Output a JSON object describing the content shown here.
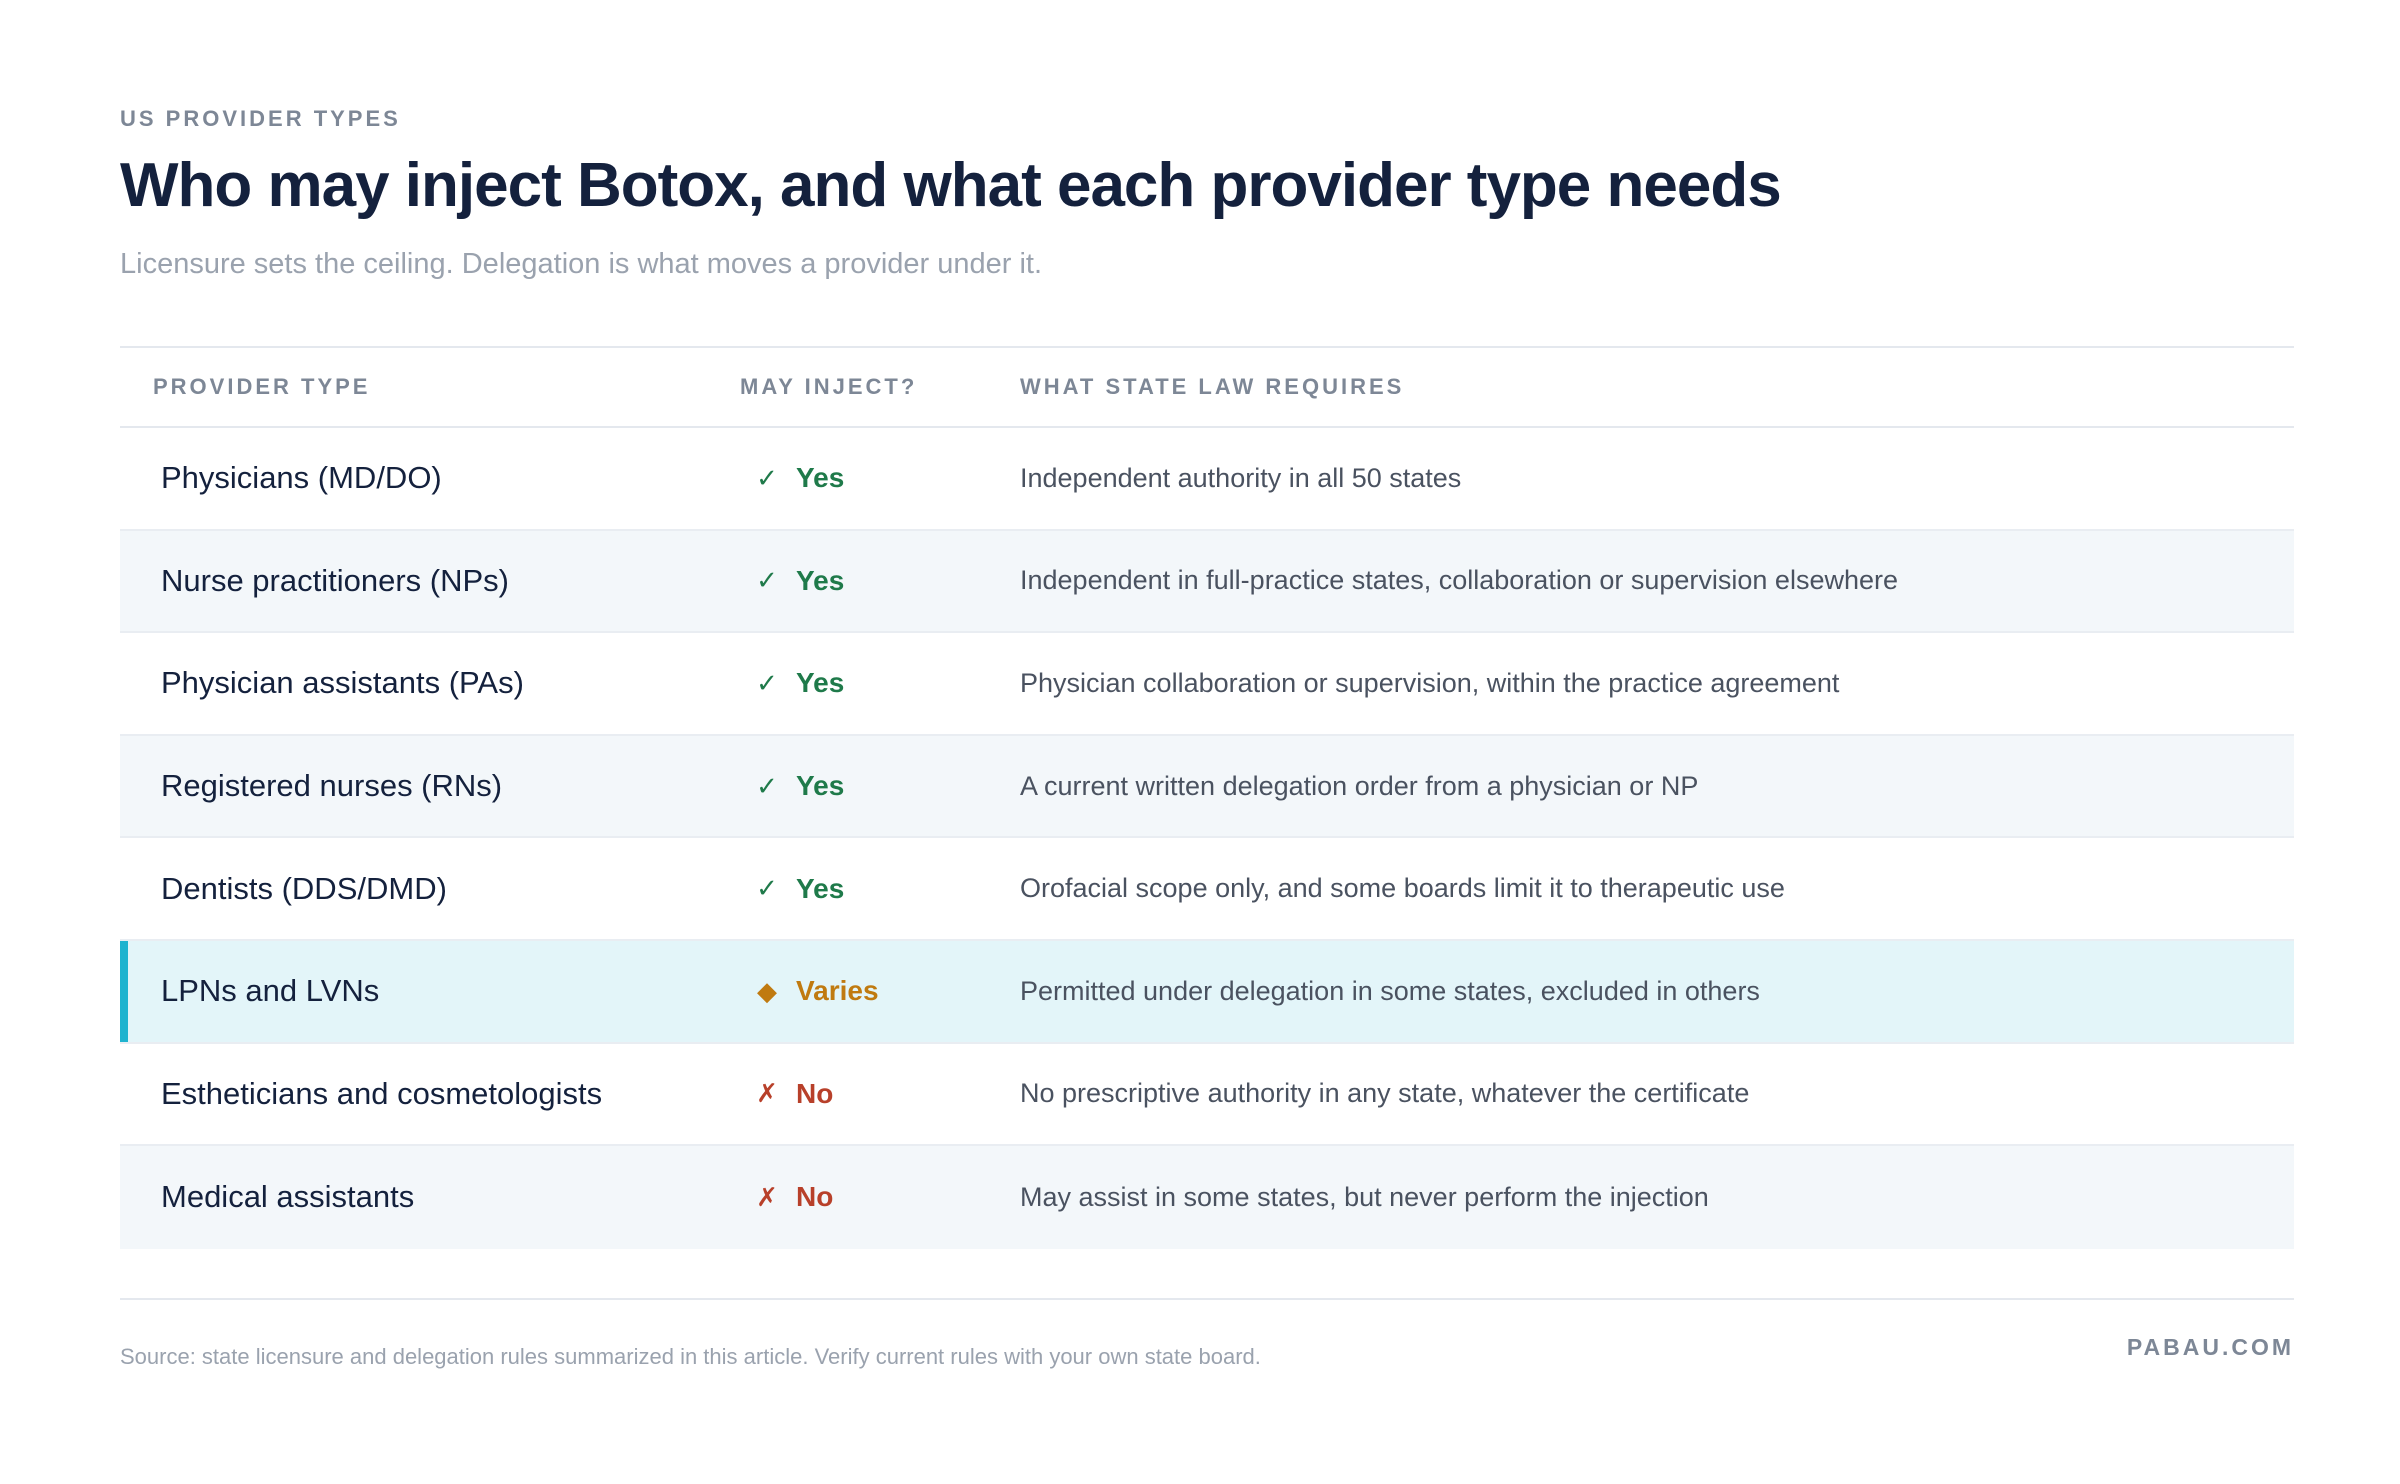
{
  "header": {
    "eyebrow": "US PROVIDER TYPES",
    "title": "Who may inject Botox, and what each provider type needs",
    "subtitle": "Licensure sets the ceiling. Delegation is what moves a provider under it."
  },
  "table": {
    "columns": [
      "PROVIDER TYPE",
      "MAY INJECT?",
      "WHAT STATE LAW REQUIRES"
    ],
    "rows": [
      {
        "provider": "Physicians (MD/DO)",
        "status": "yes",
        "icon": "✓",
        "may_inject": "Yes",
        "requirement": "Independent authority in all 50 states"
      },
      {
        "provider": "Nurse practitioners (NPs)",
        "status": "yes",
        "icon": "✓",
        "may_inject": "Yes",
        "requirement": "Independent in full-practice states, collaboration or supervision elsewhere"
      },
      {
        "provider": "Physician assistants (PAs)",
        "status": "yes",
        "icon": "✓",
        "may_inject": "Yes",
        "requirement": "Physician collaboration or supervision, within the practice agreement"
      },
      {
        "provider": "Registered nurses (RNs)",
        "status": "yes",
        "icon": "✓",
        "may_inject": "Yes",
        "requirement": "A current written delegation order from a physician or NP"
      },
      {
        "provider": "Dentists (DDS/DMD)",
        "status": "yes",
        "icon": "✓",
        "may_inject": "Yes",
        "requirement": "Orofacial scope only, and some boards limit it to therapeutic use"
      },
      {
        "provider": "LPNs and LVNs",
        "status": "varies",
        "icon": "◆",
        "may_inject": "Varies",
        "requirement": "Permitted under delegation in some states, excluded in others",
        "highlighted": true
      },
      {
        "provider": "Estheticians and cosmetologists",
        "status": "no",
        "icon": "✗",
        "may_inject": "No",
        "requirement": "No prescriptive authority in any state, whatever the certificate"
      },
      {
        "provider": "Medical assistants",
        "status": "no",
        "icon": "✗",
        "may_inject": "No",
        "requirement": "May assist in some states, but never perform the injection"
      }
    ]
  },
  "footer": {
    "source": "Source: state licensure and delegation rules summarized in this article. Verify current rules with your own state board.",
    "brand": "PABAU.COM"
  },
  "colors": {
    "yes": "#1f7a4a",
    "varies": "#c07a10",
    "no": "#b8402a",
    "highlight_bar": "#1fb3cf"
  }
}
